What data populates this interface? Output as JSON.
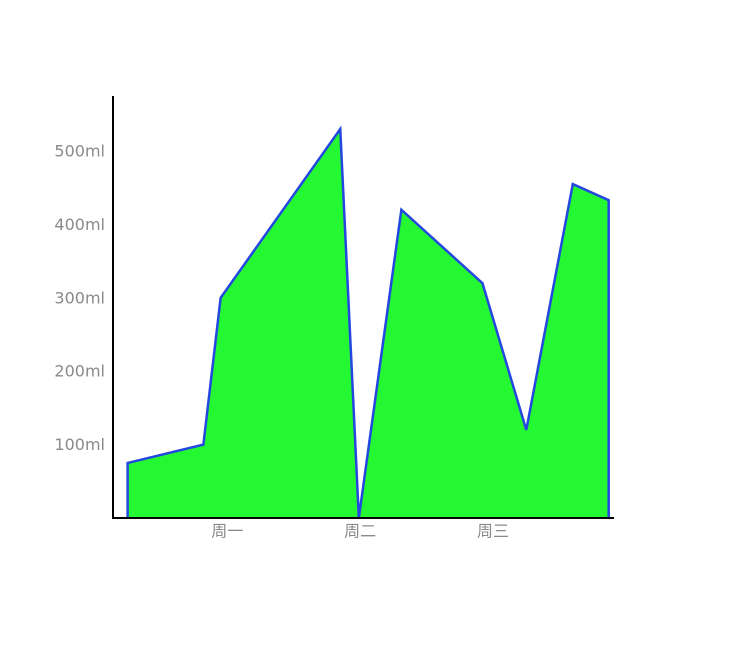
{
  "chart_data": {
    "type": "area",
    "x": [
      0,
      0.57,
      0.7,
      1.6,
      1.74,
      2.06,
      2.67,
      3.0,
      3.35,
      3.62
    ],
    "values": [
      75,
      100,
      300,
      530,
      0,
      420,
      320,
      120,
      455,
      433
    ],
    "y_ticks": [
      100,
      200,
      300,
      400,
      500
    ],
    "y_tick_labels": [
      "100ml",
      "200ml",
      "300ml",
      "400ml",
      "500ml"
    ],
    "x_ticks": [
      0.75,
      1.75,
      2.75
    ],
    "x_tick_labels": [
      "周一",
      "周二",
      "周三"
    ],
    "xlim": [
      -0.11,
      3.66
    ],
    "ylim": [
      0,
      575
    ],
    "fill_color": "#24f832",
    "line_color": "#2447e0",
    "axis_color": "#000000",
    "tick_label_color": "#8a8a8a",
    "grid": false,
    "legend": "none"
  }
}
